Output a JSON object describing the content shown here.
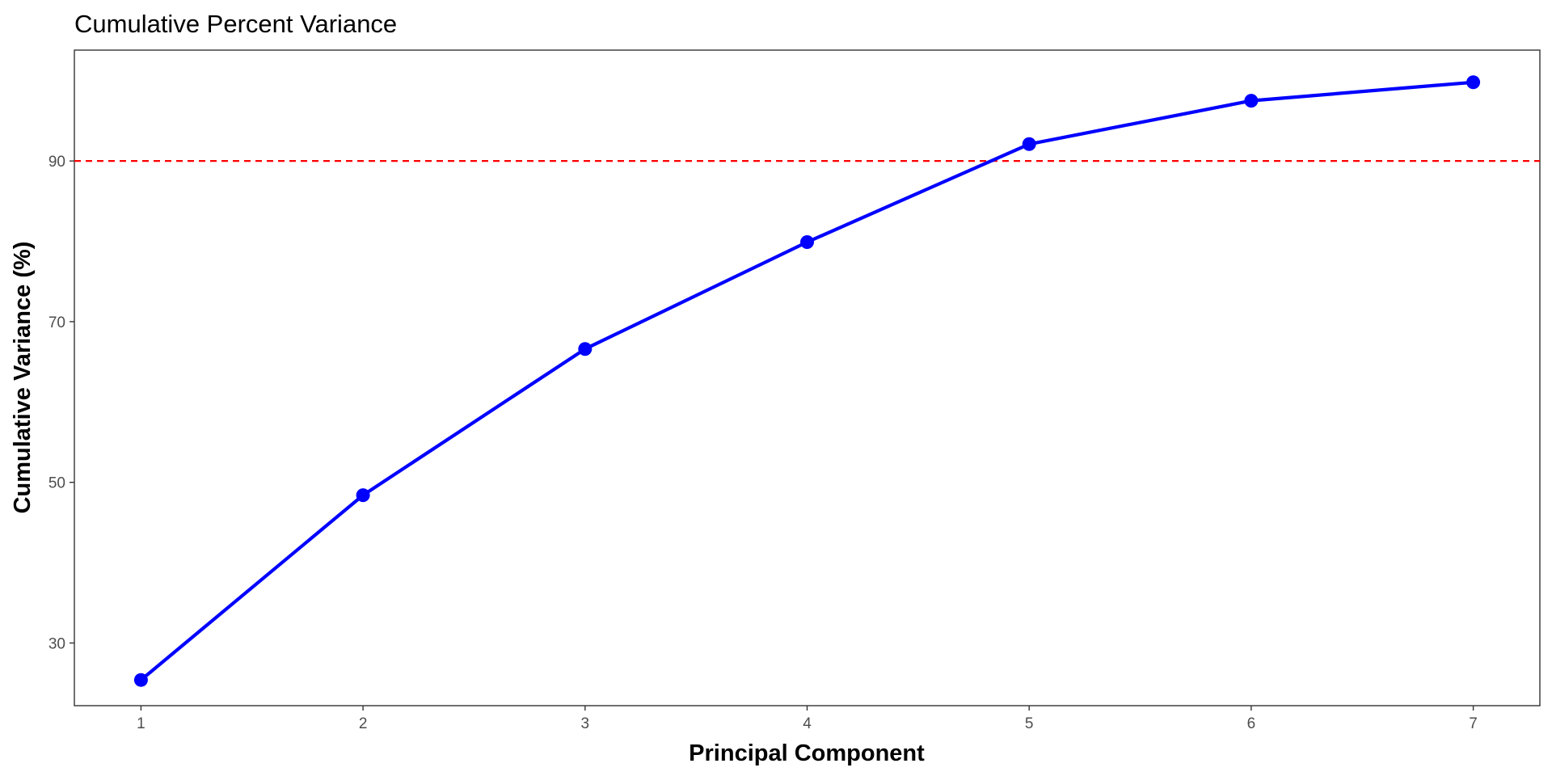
{
  "chart_data": {
    "type": "line",
    "title": "Cumulative Percent Variance",
    "xlabel": "Principal Component",
    "ylabel": "Cumulative Variance (%)",
    "x": [
      1,
      2,
      3,
      4,
      5,
      6,
      7
    ],
    "series": [
      {
        "values": [
          25.4,
          48.4,
          66.6,
          79.9,
          92.1,
          97.5,
          99.8
        ],
        "color": "#0000ff"
      }
    ],
    "xticks": [
      "1",
      "2",
      "3",
      "4",
      "5",
      "6",
      "7"
    ],
    "yticks": [
      "30",
      "50",
      "70",
      "90"
    ],
    "xlim": [
      0.7,
      7.3
    ],
    "ylim": [
      22.2,
      103.8
    ],
    "reference_line": {
      "y": 90,
      "color": "#ff0000",
      "style": "dashed"
    },
    "grid": false,
    "legend": "none"
  }
}
